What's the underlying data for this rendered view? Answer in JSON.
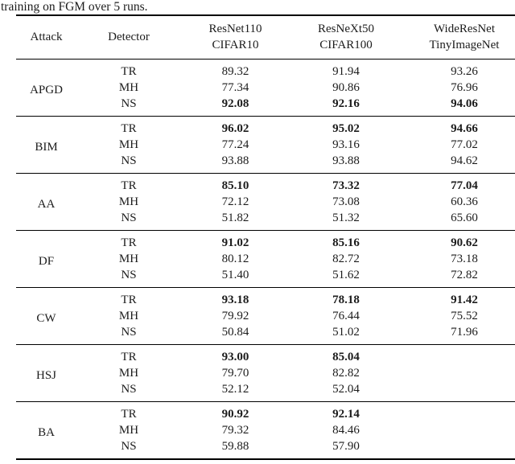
{
  "caption": "training on FGM over 5 runs.",
  "table": {
    "header": {
      "attack": "Attack",
      "detector": "Detector",
      "models": [
        {
          "line1": "ResNet110",
          "line2": "CIFAR10"
        },
        {
          "line1": "ResNeXt50",
          "line2": "CIFAR100"
        },
        {
          "line1": "WideResNet",
          "line2": "TinyImageNet"
        }
      ]
    },
    "groups": [
      {
        "attack": "APGD",
        "rows": [
          {
            "detector": "TR",
            "values": [
              "89.32",
              "91.94",
              "93.26"
            ],
            "bold": [
              false,
              false,
              false
            ]
          },
          {
            "detector": "MH",
            "values": [
              "77.34",
              "90.86",
              "76.96"
            ],
            "bold": [
              false,
              false,
              false
            ]
          },
          {
            "detector": "NS",
            "values": [
              "92.08",
              "92.16",
              "94.06"
            ],
            "bold": [
              true,
              true,
              true
            ]
          }
        ]
      },
      {
        "attack": "BIM",
        "rows": [
          {
            "detector": "TR",
            "values": [
              "96.02",
              "95.02",
              "94.66"
            ],
            "bold": [
              true,
              true,
              true
            ]
          },
          {
            "detector": "MH",
            "values": [
              "77.24",
              "93.16",
              "77.02"
            ],
            "bold": [
              false,
              false,
              false
            ]
          },
          {
            "detector": "NS",
            "values": [
              "93.88",
              "93.88",
              "94.62"
            ],
            "bold": [
              false,
              false,
              false
            ]
          }
        ]
      },
      {
        "attack": "AA",
        "rows": [
          {
            "detector": "TR",
            "values": [
              "85.10",
              "73.32",
              "77.04"
            ],
            "bold": [
              true,
              true,
              true
            ]
          },
          {
            "detector": "MH",
            "values": [
              "72.12",
              "73.08",
              "60.36"
            ],
            "bold": [
              false,
              false,
              false
            ]
          },
          {
            "detector": "NS",
            "values": [
              "51.82",
              "51.32",
              "65.60"
            ],
            "bold": [
              false,
              false,
              false
            ]
          }
        ]
      },
      {
        "attack": "DF",
        "rows": [
          {
            "detector": "TR",
            "values": [
              "91.02",
              "85.16",
              "90.62"
            ],
            "bold": [
              true,
              true,
              true
            ]
          },
          {
            "detector": "MH",
            "values": [
              "80.12",
              "82.72",
              "73.18"
            ],
            "bold": [
              false,
              false,
              false
            ]
          },
          {
            "detector": "NS",
            "values": [
              "51.40",
              "51.62",
              "72.82"
            ],
            "bold": [
              false,
              false,
              false
            ]
          }
        ]
      },
      {
        "attack": "CW",
        "rows": [
          {
            "detector": "TR",
            "values": [
              "93.18",
              "78.18",
              "91.42"
            ],
            "bold": [
              true,
              true,
              true
            ]
          },
          {
            "detector": "MH",
            "values": [
              "79.92",
              "76.44",
              "75.52"
            ],
            "bold": [
              false,
              false,
              false
            ]
          },
          {
            "detector": "NS",
            "values": [
              "50.84",
              "51.02",
              "71.96"
            ],
            "bold": [
              false,
              false,
              false
            ]
          }
        ]
      },
      {
        "attack": "HSJ",
        "rows": [
          {
            "detector": "TR",
            "values": [
              "93.00",
              "85.04",
              ""
            ],
            "bold": [
              true,
              true,
              false
            ]
          },
          {
            "detector": "MH",
            "values": [
              "79.70",
              "82.82",
              ""
            ],
            "bold": [
              false,
              false,
              false
            ]
          },
          {
            "detector": "NS",
            "values": [
              "52.12",
              "52.04",
              ""
            ],
            "bold": [
              false,
              false,
              false
            ]
          }
        ]
      },
      {
        "attack": "BA",
        "rows": [
          {
            "detector": "TR",
            "values": [
              "90.92",
              "92.14",
              ""
            ],
            "bold": [
              true,
              true,
              false
            ]
          },
          {
            "detector": "MH",
            "values": [
              "79.32",
              "84.46",
              ""
            ],
            "bold": [
              false,
              false,
              false
            ]
          },
          {
            "detector": "NS",
            "values": [
              "59.88",
              "57.90",
              ""
            ],
            "bold": [
              false,
              false,
              false
            ]
          }
        ]
      }
    ]
  }
}
